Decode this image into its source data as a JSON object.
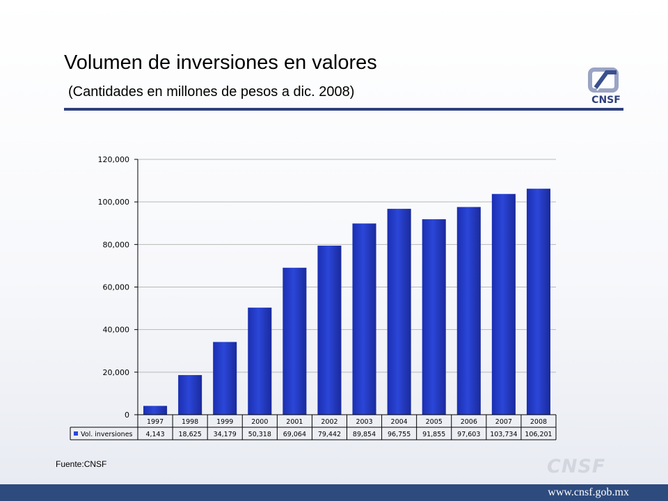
{
  "slide": {
    "title": "Volumen de inversiones en valores",
    "subtitle": "(Cantidades en millones de pesos a dic. 2008)",
    "source": "Fuente:CNSF",
    "logo_text": "CNSF",
    "watermark": "CNSF",
    "footer_url": "www.cnsf.gob.mx",
    "colors": {
      "rule": "#2e3f7c",
      "bar": "#2b46d8",
      "footer": "#2e4b7e"
    }
  },
  "chart_data": {
    "type": "bar",
    "categories": [
      "1997",
      "1998",
      "1999",
      "2000",
      "2001",
      "2002",
      "2003",
      "2004",
      "2005",
      "2006",
      "2007",
      "2008"
    ],
    "series": [
      {
        "name": "Vol. inversiones",
        "values": [
          4143,
          18625,
          34179,
          50318,
          69064,
          79442,
          89854,
          96755,
          91855,
          97603,
          103734,
          106201
        ],
        "labels": [
          "4,143",
          "18,625",
          "34,179",
          "50,318",
          "69,064",
          "79,442",
          "89,854",
          "96,755",
          "91,855",
          "97,603",
          "103,734",
          "106,201"
        ]
      }
    ],
    "yticks": [
      "0",
      "20,000",
      "40,000",
      "60,000",
      "80,000",
      "100,000",
      "120,000"
    ],
    "ytick_values": [
      0,
      20000,
      40000,
      60000,
      80000,
      100000,
      120000
    ],
    "ylim": [
      0,
      120000
    ],
    "grid": true,
    "legend": "data-table"
  }
}
